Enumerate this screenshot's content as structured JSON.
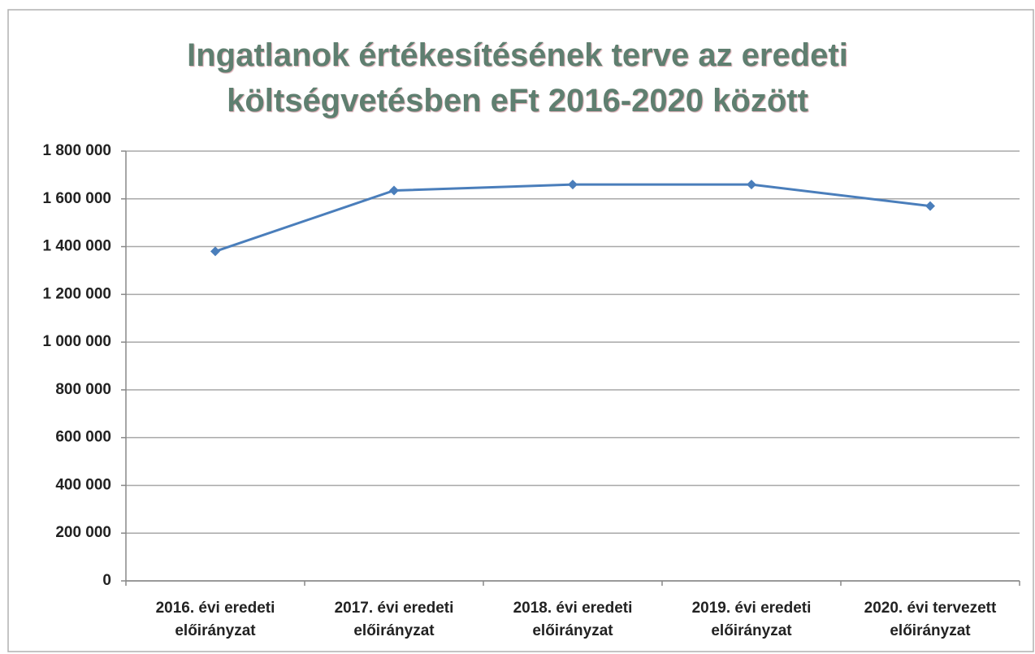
{
  "chart_data": {
    "type": "line",
    "title": "Ingatlanok értékesítésének terve az eredeti költségvetésben eFt 2016-2020 között",
    "categories": [
      "2016. évi eredeti\nelőirányzat",
      "2017. évi eredeti\nelőirányzat",
      "2018. évi eredeti\nelőirányzat",
      "2019. évi eredeti\nelőirányzat",
      "2020. évi tervezett\nelőirányzat"
    ],
    "series": [
      {
        "name": null,
        "color": "#4a7ebb",
        "values": [
          1380000,
          1635000,
          1660000,
          1660000,
          1570000
        ]
      }
    ],
    "ylim": [
      0,
      1800000
    ],
    "yticks": [
      0,
      {
        "value": 200000,
        "label": "200 000"
      },
      {
        "value": 400000,
        "label": "400 000"
      },
      {
        "value": 600000,
        "label": "600 000"
      },
      {
        "value": 800000,
        "label": "800 000"
      },
      {
        "value": 1000000,
        "label": "1 000 000"
      },
      {
        "value": 1200000,
        "label": "1 200 000"
      },
      {
        "value": 1400000,
        "label": "1 400 000"
      },
      {
        "value": 1600000,
        "label": "1 600 000"
      },
      {
        "value": 1800000,
        "label": "1 800 000"
      }
    ],
    "grid": true
  }
}
